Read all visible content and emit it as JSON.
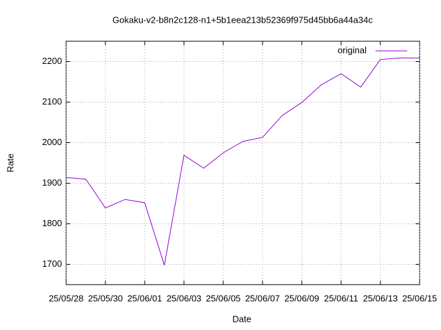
{
  "chart_data": {
    "type": "line",
    "title": "Gokaku-v2-b8n2c128-n1+5b1eea213b52369f975d45bb6a44a34c",
    "x_label": "Date",
    "y_label": "Rate",
    "x": [
      "25/05/28",
      "25/05/29",
      "25/05/30",
      "25/05/31",
      "25/06/01",
      "25/06/02",
      "25/06/03",
      "25/06/04",
      "25/06/05",
      "25/06/06",
      "25/06/07",
      "25/06/08",
      "25/06/09",
      "25/06/10",
      "25/06/11",
      "25/06/12",
      "25/06/13",
      "25/06/14",
      "25/06/15"
    ],
    "series": [
      {
        "name": "original",
        "color": "#9400d3",
        "values": [
          1914,
          1910,
          1839,
          1860,
          1852,
          1698,
          1969,
          1937,
          1975,
          2003,
          2013,
          2067,
          2099,
          2143,
          2170,
          2137,
          2205,
          2209,
          2209
        ]
      }
    ],
    "xlim": [
      "25/05/28",
      "25/06/15"
    ],
    "xticks": [
      "25/05/28",
      "25/05/30",
      "25/06/01",
      "25/06/03",
      "25/06/05",
      "25/06/07",
      "25/06/09",
      "25/06/11",
      "25/06/13",
      "25/06/15"
    ],
    "ylim": [
      1650,
      2250
    ],
    "yticks": [
      1700,
      1800,
      1900,
      2000,
      2100,
      2200
    ],
    "grid": true,
    "legend": "top-right"
  }
}
